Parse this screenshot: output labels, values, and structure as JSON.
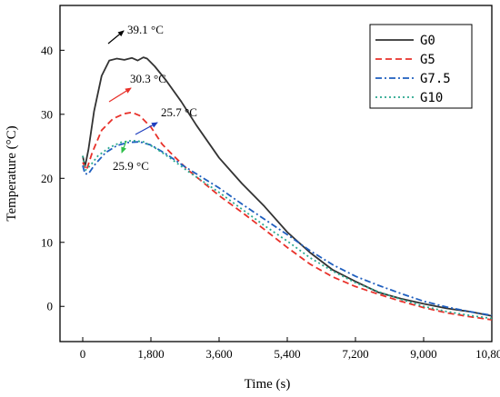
{
  "chart_data": {
    "type": "line",
    "xlabel": "Time (s)",
    "ylabel": "Temperature (°C)",
    "xlim": [
      -600,
      10800
    ],
    "ylim": [
      -5.5,
      47
    ],
    "x_ticks": [
      0,
      1800,
      3600,
      5400,
      7200,
      9000,
      10800
    ],
    "x_tick_labels": [
      "0",
      "1,800",
      "3,600",
      "5,400",
      "7,200",
      "9,000",
      "10,800"
    ],
    "y_ticks": [
      0,
      10,
      20,
      30,
      40
    ],
    "y_tick_labels": [
      "0",
      "10",
      "20",
      "30",
      "40"
    ],
    "grid": false,
    "legend_position": "top-right",
    "series": [
      {
        "name": "G0",
        "color": "#333333",
        "dash": "solid",
        "points": [
          [
            0,
            23.5
          ],
          [
            60,
            21.8
          ],
          [
            150,
            24.5
          ],
          [
            300,
            30.5
          ],
          [
            500,
            36
          ],
          [
            700,
            38.4
          ],
          [
            900,
            38.7
          ],
          [
            1100,
            38.5
          ],
          [
            1300,
            38.8
          ],
          [
            1450,
            38.4
          ],
          [
            1600,
            38.9
          ],
          [
            1700,
            38.7
          ],
          [
            1900,
            37.5
          ],
          [
            2200,
            35.3
          ],
          [
            2600,
            32
          ],
          [
            3000,
            28.3
          ],
          [
            3600,
            23.2
          ],
          [
            4200,
            19.2
          ],
          [
            4800,
            15.6
          ],
          [
            5400,
            11.6
          ],
          [
            6000,
            8.4
          ],
          [
            6600,
            5.7
          ],
          [
            7200,
            3.9
          ],
          [
            7800,
            2.2
          ],
          [
            8400,
            1.2
          ],
          [
            9000,
            0.4
          ],
          [
            9600,
            -0.3
          ],
          [
            10200,
            -0.8
          ],
          [
            10800,
            -1.5
          ]
        ]
      },
      {
        "name": "G5",
        "color": "#e8312a",
        "dash": "dashed",
        "points": [
          [
            0,
            22.5
          ],
          [
            100,
            21.3
          ],
          [
            250,
            24
          ],
          [
            500,
            27.5
          ],
          [
            800,
            29.3
          ],
          [
            1100,
            30.1
          ],
          [
            1300,
            30.3
          ],
          [
            1500,
            29.8
          ],
          [
            1800,
            28
          ],
          [
            2100,
            25.3
          ],
          [
            2400,
            23.5
          ],
          [
            2800,
            21.2
          ],
          [
            3600,
            17.3
          ],
          [
            4200,
            14.7
          ],
          [
            4800,
            12
          ],
          [
            5400,
            9.2
          ],
          [
            6000,
            6.6
          ],
          [
            6600,
            4.6
          ],
          [
            7200,
            3.1
          ],
          [
            7800,
            1.9
          ],
          [
            8400,
            0.8
          ],
          [
            9000,
            -0.2
          ],
          [
            9600,
            -1
          ],
          [
            10200,
            -1.6
          ],
          [
            10800,
            -2.1
          ]
        ]
      },
      {
        "name": "G7.5",
        "color": "#1f5fbf",
        "dash": "dashdot",
        "points": [
          [
            0,
            22
          ],
          [
            60,
            20.7
          ],
          [
            150,
            20.7
          ],
          [
            300,
            22
          ],
          [
            600,
            24
          ],
          [
            900,
            25.1
          ],
          [
            1200,
            25.6
          ],
          [
            1500,
            25.7
          ],
          [
            1800,
            25.2
          ],
          [
            2200,
            23.8
          ],
          [
            2700,
            21.8
          ],
          [
            3600,
            18.5
          ],
          [
            4200,
            16
          ],
          [
            4800,
            13.6
          ],
          [
            5400,
            11.2
          ],
          [
            6000,
            8.7
          ],
          [
            6600,
            6.5
          ],
          [
            7200,
            4.7
          ],
          [
            7800,
            3.3
          ],
          [
            8400,
            2
          ],
          [
            9000,
            0.8
          ],
          [
            9600,
            -0.1
          ],
          [
            10200,
            -0.8
          ],
          [
            10800,
            -1.4
          ]
        ]
      },
      {
        "name": "G10",
        "color": "#29a88f",
        "dash": "dotted",
        "points": [
          [
            0,
            23.5
          ],
          [
            80,
            21.3
          ],
          [
            200,
            22
          ],
          [
            400,
            23.5
          ],
          [
            700,
            24.8
          ],
          [
            1000,
            25.6
          ],
          [
            1300,
            25.9
          ],
          [
            1600,
            25.7
          ],
          [
            1900,
            24.8
          ],
          [
            2300,
            23.2
          ],
          [
            2800,
            21
          ],
          [
            3600,
            17.8
          ],
          [
            4200,
            15.2
          ],
          [
            4800,
            12.6
          ],
          [
            5400,
            10.2
          ],
          [
            6000,
            7.6
          ],
          [
            6600,
            5.5
          ],
          [
            7200,
            3.7
          ],
          [
            7800,
            2.3
          ],
          [
            8400,
            1.1
          ],
          [
            9000,
            0
          ],
          [
            9600,
            -0.8
          ],
          [
            10200,
            -1.4
          ],
          [
            10800,
            -1.9
          ]
        ]
      }
    ],
    "annotations": [
      {
        "text": "39.1 °C",
        "color": "#000000",
        "x": 1150,
        "y": 39.1
      },
      {
        "text": "30.3 °C",
        "color": "#e8312a",
        "x": 1300,
        "y": 30.3
      },
      {
        "text": "25.7 °C",
        "color": "#1f3fbf",
        "x": 1550,
        "y": 25.7
      },
      {
        "text": "25.9 °C",
        "color": "#2fbf4a",
        "x": 1300,
        "y": 25.9
      }
    ]
  }
}
